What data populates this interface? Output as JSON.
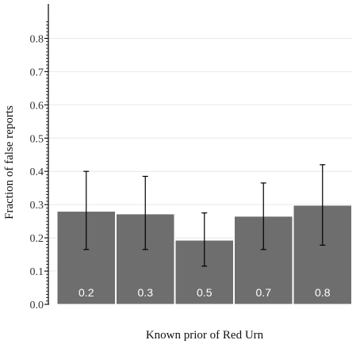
{
  "chart_data": {
    "type": "bar",
    "title": "",
    "xlabel": "Known prior of Red Urn",
    "ylabel": "Fraction of false reports",
    "ylim": [
      0,
      0.85
    ],
    "yticks": [
      "0.0",
      "0.1",
      "0.2",
      "0.3",
      "0.4",
      "0.5",
      "0.6",
      "0.7",
      "0.8"
    ],
    "grid": true,
    "categories": [
      "0.2",
      "0.3",
      "0.5",
      "0.7",
      "0.8"
    ],
    "values": [
      0.28,
      0.272,
      0.193,
      0.265,
      0.298
    ],
    "error_low": [
      0.165,
      0.165,
      0.115,
      0.165,
      0.178
    ],
    "error_high": [
      0.4,
      0.385,
      0.275,
      0.365,
      0.42
    ],
    "colors": {
      "bar": "#6e6e6e",
      "bar_edge": "#ffffff",
      "grid": "#e8e8e8",
      "axis": "#000000",
      "errorbar": "#000000"
    }
  }
}
